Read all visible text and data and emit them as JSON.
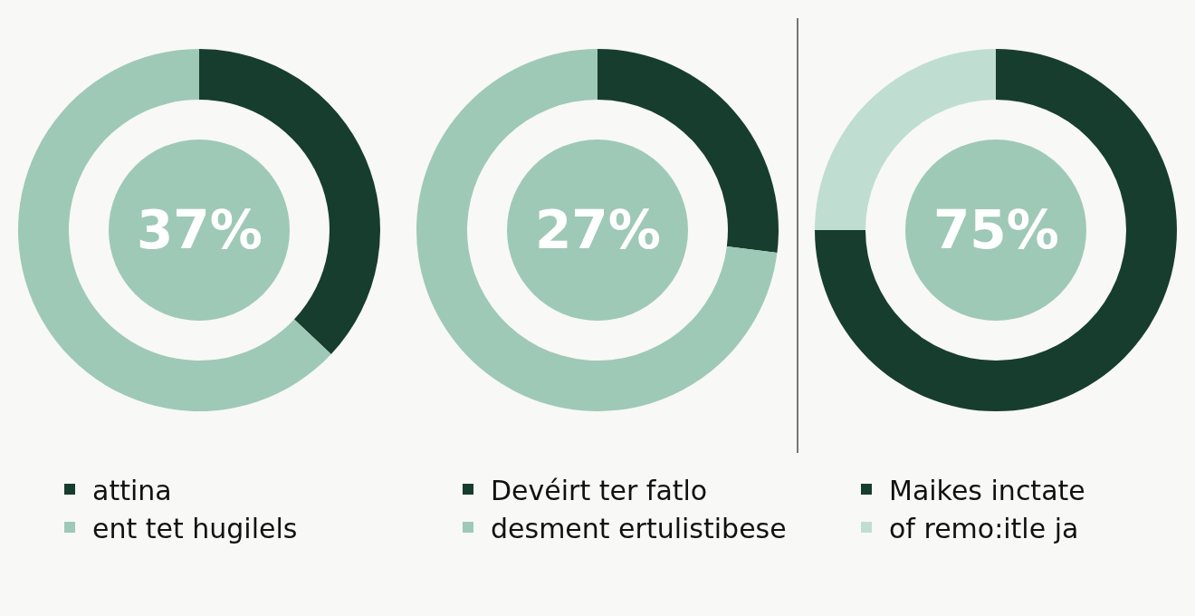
{
  "chart_data": [
    {
      "type": "donut",
      "categories": [
        "attina",
        "ent tet hugilels"
      ],
      "values": [
        37,
        63
      ],
      "colors": [
        "#173d2e",
        "#9ec9b6"
      ],
      "annotations": [
        "37%"
      ],
      "legend": "bottom"
    },
    {
      "type": "donut",
      "categories": [
        "Devéirt ter fatlo",
        "desment ertulistibese"
      ],
      "values": [
        27,
        73
      ],
      "colors": [
        "#173d2e",
        "#9ec9b6"
      ],
      "annotations": [
        "27%"
      ],
      "legend": "bottom"
    },
    {
      "type": "donut",
      "categories": [
        "Maikes inctate",
        "of remo:itle ja"
      ],
      "values": [
        75,
        25
      ],
      "colors": [
        "#173d2e",
        "#bfded1"
      ],
      "annotations": [
        "75%"
      ],
      "legend": "bottom"
    }
  ]
}
